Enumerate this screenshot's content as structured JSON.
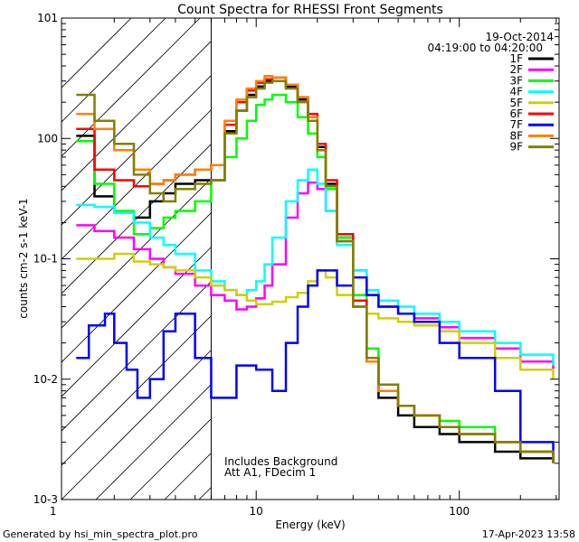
{
  "chart_data": {
    "type": "line",
    "title": "Count Spectra for RHESSI Front Segments",
    "xlabel": "Energy (keV)",
    "ylabel": "counts cm-2 s-1 keV-1",
    "xscale": "log",
    "yscale": "log",
    "xlim": [
      1.1,
      310
    ],
    "ylim": [
      0.001,
      10
    ],
    "x_tick_labels": [
      "1",
      "10",
      "100"
    ],
    "y_tick_labels": [
      "10-3",
      "10-2",
      "10-1",
      "100",
      "101"
    ],
    "date": "19-Oct-2014",
    "time_range": "04:19:00 to 04:20:00",
    "hatched_region_max_kev": 6,
    "annotation_line1": "Includes Background",
    "annotation_line2": "Att A1, FDecim 1",
    "footer_left": "Generated by hsi_min_spectra_plot.pro",
    "footer_right": "17-Apr-2023 13:58",
    "series": [
      {
        "name": "1F",
        "color": "#000000",
        "x": [
          1.3,
          1.6,
          2.0,
          2.5,
          3.0,
          3.5,
          4.0,
          5.0,
          6.0,
          7.0,
          8.0,
          9.0,
          10.0,
          11.0,
          12.0,
          14.0,
          16.0,
          18.0,
          20.0,
          22.0,
          25.0,
          30.0,
          35.0,
          40.0,
          50.0,
          60.0,
          80.0,
          100.0,
          150.0,
          200.0,
          290.0
        ],
        "y": [
          1.05,
          0.33,
          0.24,
          0.22,
          0.3,
          0.35,
          0.42,
          0.45,
          0.45,
          1.15,
          1.7,
          2.3,
          2.7,
          3.0,
          3.0,
          2.7,
          2.1,
          1.5,
          0.85,
          0.42,
          0.15,
          0.04,
          0.014,
          0.007,
          0.005,
          0.004,
          0.0035,
          0.003,
          0.0025,
          0.0022,
          0.002
        ]
      },
      {
        "name": "2F",
        "color": "#ff00ff",
        "x": [
          1.3,
          1.6,
          2.0,
          2.5,
          3.0,
          3.5,
          4.0,
          5.0,
          6.0,
          7.0,
          8.0,
          9.0,
          10.0,
          11.0,
          12.0,
          14.0,
          16.0,
          18.0,
          20.0,
          22.0,
          25.0,
          30.0,
          35.0,
          40.0,
          50.0,
          60.0,
          80.0,
          100.0,
          150.0,
          200.0,
          290.0
        ],
        "y": [
          0.19,
          0.17,
          0.15,
          0.12,
          0.1,
          0.085,
          0.075,
          0.06,
          0.05,
          0.045,
          0.038,
          0.04,
          0.047,
          0.06,
          0.09,
          0.22,
          0.35,
          0.43,
          0.38,
          0.25,
          0.14,
          0.08,
          0.05,
          0.04,
          0.035,
          0.032,
          0.027,
          0.022,
          0.018,
          0.014,
          0.012
        ]
      },
      {
        "name": "3F",
        "color": "#00ff00",
        "x": [
          1.3,
          1.6,
          2.0,
          2.5,
          3.0,
          3.5,
          4.0,
          5.0,
          6.0,
          7.0,
          8.0,
          9.0,
          10.0,
          11.0,
          12.0,
          14.0,
          16.0,
          18.0,
          20.0,
          22.0,
          25.0,
          30.0,
          35.0,
          40.0,
          50.0,
          60.0,
          80.0,
          100.0,
          150.0,
          200.0,
          290.0
        ],
        "y": [
          0.95,
          0.42,
          0.25,
          0.16,
          0.18,
          0.22,
          0.25,
          0.3,
          0.45,
          0.7,
          1.0,
          1.4,
          1.9,
          2.1,
          2.3,
          2.0,
          1.5,
          1.1,
          0.7,
          0.38,
          0.15,
          0.05,
          0.018,
          0.008,
          0.006,
          0.005,
          0.0045,
          0.004,
          0.003,
          0.0025,
          0.002
        ]
      },
      {
        "name": "4F",
        "color": "#00ffff",
        "x": [
          1.3,
          1.6,
          2.0,
          2.5,
          3.0,
          3.5,
          4.0,
          5.0,
          6.0,
          7.0,
          8.0,
          9.0,
          10.0,
          11.0,
          12.0,
          14.0,
          16.0,
          18.0,
          20.0,
          22.0,
          25.0,
          30.0,
          35.0,
          40.0,
          50.0,
          60.0,
          80.0,
          100.0,
          150.0,
          200.0,
          290.0
        ],
        "y": [
          0.28,
          0.27,
          0.24,
          0.2,
          0.15,
          0.13,
          0.11,
          0.08,
          0.065,
          0.055,
          0.05,
          0.055,
          0.065,
          0.09,
          0.15,
          0.3,
          0.45,
          0.55,
          0.42,
          0.25,
          0.13,
          0.08,
          0.055,
          0.045,
          0.04,
          0.035,
          0.03,
          0.025,
          0.02,
          0.016,
          0.013
        ]
      },
      {
        "name": "5F",
        "color": "#d0d000",
        "x": [
          1.3,
          1.6,
          2.0,
          2.5,
          3.0,
          3.5,
          4.0,
          5.0,
          6.0,
          7.0,
          8.0,
          9.0,
          10.0,
          11.0,
          12.0,
          14.0,
          16.0,
          18.0,
          20.0,
          22.0,
          25.0,
          30.0,
          35.0,
          40.0,
          50.0,
          60.0,
          80.0,
          100.0,
          150.0,
          200.0,
          290.0
        ],
        "y": [
          0.1,
          0.1,
          0.11,
          0.095,
          0.09,
          0.085,
          0.08,
          0.07,
          0.06,
          0.055,
          0.05,
          0.045,
          0.042,
          0.042,
          0.044,
          0.048,
          0.052,
          0.065,
          0.08,
          0.07,
          0.05,
          0.04,
          0.035,
          0.032,
          0.03,
          0.028,
          0.025,
          0.02,
          0.015,
          0.012,
          0.01
        ]
      },
      {
        "name": "6F",
        "color": "#ff0000",
        "x": [
          1.3,
          1.6,
          2.0,
          2.5,
          3.0,
          3.5,
          4.0,
          5.0,
          6.0,
          7.0,
          8.0,
          9.0,
          10.0,
          11.0,
          12.0,
          14.0,
          16.0,
          18.0,
          20.0,
          22.0,
          25.0,
          30.0,
          35.0,
          40.0,
          50.0,
          60.0,
          80.0,
          100.0,
          150.0,
          200.0,
          290.0
        ],
        "y": [
          1.2,
          0.55,
          0.45,
          0.4,
          0.42,
          0.45,
          0.5,
          0.55,
          0.6,
          1.3,
          2.0,
          2.5,
          2.9,
          3.1,
          3.2,
          2.8,
          2.2,
          1.6,
          0.9,
          0.45,
          0.16,
          0.045,
          0.015,
          0.008,
          0.006,
          0.005,
          0.004,
          0.0035,
          0.003,
          0.0025,
          0.002
        ]
      },
      {
        "name": "7F",
        "color": "#0000ff",
        "x": [
          1.3,
          1.5,
          1.8,
          2.0,
          2.3,
          2.6,
          3.0,
          3.5,
          4.0,
          5.0,
          6.0,
          8.0,
          10.0,
          12.0,
          14.0,
          16.0,
          18.0,
          20.0,
          25.0,
          30.0,
          35.0,
          40.0,
          50.0,
          60.0,
          80.0,
          100.0,
          150.0,
          200.0,
          290.0
        ],
        "y": [
          0.015,
          0.028,
          0.035,
          0.02,
          0.012,
          0.007,
          0.01,
          0.025,
          0.035,
          0.015,
          0.007,
          0.013,
          0.012,
          0.008,
          0.02,
          0.04,
          0.06,
          0.08,
          0.06,
          0.07,
          0.05,
          0.04,
          0.035,
          0.03,
          0.02,
          0.015,
          0.008,
          0.003,
          0.002
        ]
      },
      {
        "name": "8F",
        "color": "#ff8000",
        "x": [
          1.3,
          1.6,
          2.0,
          2.5,
          3.0,
          3.5,
          4.0,
          5.0,
          6.0,
          7.0,
          8.0,
          9.0,
          10.0,
          11.0,
          12.0,
          14.0,
          16.0,
          18.0,
          20.0,
          22.0,
          25.0,
          30.0,
          35.0,
          40.0,
          50.0,
          60.0,
          80.0,
          100.0,
          150.0,
          200.0,
          290.0
        ],
        "y": [
          1.6,
          1.2,
          0.8,
          0.55,
          0.42,
          0.45,
          0.5,
          0.55,
          0.6,
          1.4,
          2.1,
          2.6,
          3.0,
          3.3,
          3.2,
          2.8,
          2.2,
          1.5,
          0.8,
          0.4,
          0.14,
          0.04,
          0.014,
          0.008,
          0.006,
          0.005,
          0.004,
          0.0035,
          0.003,
          0.0025,
          0.002
        ]
      },
      {
        "name": "9F",
        "color": "#808000",
        "x": [
          1.3,
          1.6,
          2.0,
          2.5,
          3.0,
          3.5,
          4.0,
          5.0,
          6.0,
          7.0,
          8.0,
          9.0,
          10.0,
          11.0,
          12.0,
          14.0,
          16.0,
          18.0,
          20.0,
          22.0,
          25.0,
          30.0,
          35.0,
          40.0,
          50.0,
          60.0,
          80.0,
          100.0,
          150.0,
          200.0,
          290.0
        ],
        "y": [
          2.3,
          1.4,
          0.9,
          0.5,
          0.35,
          0.3,
          0.38,
          0.42,
          0.45,
          1.1,
          1.7,
          2.2,
          2.6,
          2.9,
          3.0,
          2.6,
          2.0,
          1.4,
          0.8,
          0.4,
          0.14,
          0.04,
          0.015,
          0.009,
          0.006,
          0.005,
          0.004,
          0.0035,
          0.003,
          0.0025,
          0.002
        ]
      }
    ]
  }
}
